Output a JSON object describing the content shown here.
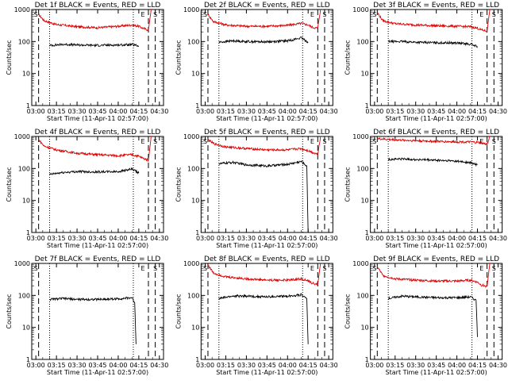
{
  "figure": {
    "start_time_label": "Start Time (11-Apr-11 02:57:00)",
    "ylabel": "Counts/sec",
    "colors": {
      "events": "#000000",
      "lld": "#e00000",
      "axes": "#000000"
    }
  },
  "chart_data": [
    {
      "type": "line",
      "detector": "1f",
      "title": "Det 1f BLACK = Events, RED = LLD",
      "x_ticks": [
        "03:00",
        "03:15",
        "03:30",
        "03:45",
        "04:00",
        "04:15",
        "04:30"
      ],
      "y_ticks": [
        "1",
        "10",
        "100",
        "1000"
      ],
      "ylim": [
        1,
        1000
      ],
      "log_y": true,
      "xlabel": "Start Time (11-Apr-11 02:57:00)",
      "ylabel": "Counts/sec",
      "markers": [
        {
          "label": "S",
          "time": "03:00"
        },
        {
          "label": "E",
          "time": "04:18"
        },
        {
          "label": "S",
          "time": "04:27"
        }
      ],
      "dashed_lines": [
        "03:02",
        "04:22",
        "04:27"
      ],
      "dotted_lines": [
        "03:10",
        "04:11"
      ],
      "series": [
        {
          "name": "LLD",
          "color": "#e00000",
          "x": [
            "03:02",
            "03:06",
            "03:15",
            "03:30",
            "03:45",
            "04:00",
            "04:10",
            "04:15",
            "04:18",
            "04:22",
            "04:24"
          ],
          "values": [
            700,
            450,
            340,
            290,
            270,
            300,
            330,
            300,
            260,
            230,
            1000
          ]
        },
        {
          "name": "Events",
          "color": "#000000",
          "x": [
            "03:10",
            "03:20",
            "03:30",
            "03:45",
            "04:00",
            "04:10",
            "04:15"
          ],
          "values": [
            75,
            82,
            78,
            76,
            78,
            80,
            72
          ]
        }
      ]
    },
    {
      "type": "line",
      "detector": "2f",
      "title": "Det 2f BLACK = Events, RED = LLD",
      "x_ticks": [
        "03:00",
        "03:15",
        "03:30",
        "03:45",
        "04:00",
        "04:15",
        "04:30"
      ],
      "y_ticks": [
        "1",
        "10",
        "100",
        "1000"
      ],
      "ylim": [
        1,
        1000
      ],
      "log_y": true,
      "xlabel": "Start Time (11-Apr-11 02:57:00)",
      "ylabel": "Counts/sec",
      "markers": [
        {
          "label": "S",
          "time": "03:00"
        },
        {
          "label": "E",
          "time": "04:18"
        },
        {
          "label": "S",
          "time": "04:27"
        }
      ],
      "dashed_lines": [
        "03:02",
        "04:22",
        "04:27"
      ],
      "dotted_lines": [
        "03:10",
        "04:11"
      ],
      "series": [
        {
          "name": "LLD",
          "color": "#e00000",
          "x": [
            "03:02",
            "03:06",
            "03:15",
            "03:30",
            "03:45",
            "04:00",
            "04:10",
            "04:15",
            "04:18",
            "04:22",
            "04:24"
          ],
          "values": [
            700,
            420,
            330,
            300,
            300,
            320,
            370,
            330,
            280,
            260,
            1000
          ]
        },
        {
          "name": "Events",
          "color": "#000000",
          "x": [
            "03:10",
            "03:20",
            "03:30",
            "03:45",
            "04:00",
            "04:10",
            "04:15"
          ],
          "values": [
            95,
            105,
            100,
            98,
            105,
            130,
            95
          ]
        }
      ]
    },
    {
      "type": "line",
      "detector": "3f",
      "title": "Det 3f BLACK = Events, RED = LLD",
      "x_ticks": [
        "03:00",
        "03:15",
        "03:30",
        "03:45",
        "04:00",
        "04:15",
        "04:30"
      ],
      "y_ticks": [
        "1",
        "10",
        "100",
        "1000"
      ],
      "ylim": [
        1,
        1000
      ],
      "log_y": true,
      "xlabel": "Start Time (11-Apr-11 02:57:00)",
      "ylabel": "Counts/sec",
      "markers": [
        {
          "label": "S",
          "time": "03:00"
        },
        {
          "label": "E",
          "time": "04:18"
        },
        {
          "label": "S",
          "time": "04:27"
        }
      ],
      "dashed_lines": [
        "03:02",
        "04:22",
        "04:27"
      ],
      "dotted_lines": [
        "03:10",
        "04:11"
      ],
      "series": [
        {
          "name": "LLD",
          "color": "#e00000",
          "x": [
            "03:02",
            "03:06",
            "03:15",
            "03:30",
            "03:45",
            "04:00",
            "04:10",
            "04:15",
            "04:18",
            "04:22",
            "04:24"
          ],
          "values": [
            800,
            450,
            360,
            330,
            310,
            300,
            290,
            260,
            230,
            210,
            1000
          ]
        },
        {
          "name": "Events",
          "color": "#000000",
          "x": [
            "03:10",
            "03:20",
            "03:30",
            "03:45",
            "04:00",
            "04:10",
            "04:15"
          ],
          "values": [
            100,
            100,
            95,
            92,
            90,
            82,
            70
          ]
        }
      ]
    },
    {
      "type": "line",
      "detector": "4f",
      "title": "Det 4f BLACK = Events, RED = LLD",
      "x_ticks": [
        "03:00",
        "03:15",
        "03:30",
        "03:45",
        "04:00",
        "04:15",
        "04:30"
      ],
      "y_ticks": [
        "1",
        "10",
        "100",
        "1000"
      ],
      "ylim": [
        1,
        1000
      ],
      "log_y": true,
      "xlabel": "Start Time (11-Apr-11 02:57:00)",
      "ylabel": "Counts/sec",
      "markers": [
        {
          "label": "E",
          "time": "04:18"
        },
        {
          "label": "S",
          "time": "04:27"
        }
      ],
      "dashed_lines": [
        "03:02",
        "04:22",
        "04:27"
      ],
      "dotted_lines": [
        "03:10",
        "04:11"
      ],
      "series": [
        {
          "name": "LLD",
          "color": "#e00000",
          "x": [
            "03:02",
            "03:06",
            "03:15",
            "03:30",
            "03:45",
            "04:00",
            "04:10",
            "04:15",
            "04:18",
            "04:22",
            "04:24"
          ],
          "values": [
            800,
            500,
            380,
            300,
            270,
            250,
            270,
            240,
            210,
            180,
            1000
          ]
        },
        {
          "name": "Events",
          "color": "#000000",
          "x": [
            "03:10",
            "03:20",
            "03:30",
            "03:45",
            "04:00",
            "04:10",
            "04:15"
          ],
          "values": [
            65,
            75,
            80,
            78,
            80,
            95,
            72
          ]
        }
      ]
    },
    {
      "type": "line",
      "detector": "5f",
      "title": "Det 5f BLACK = Events, RED = LLD",
      "x_ticks": [
        "03:00",
        "03:15",
        "03:30",
        "03:45",
        "04:00",
        "04:15",
        "04:30"
      ],
      "y_ticks": [
        "1",
        "10",
        "100",
        "1000"
      ],
      "ylim": [
        1,
        1000
      ],
      "log_y": true,
      "xlabel": "Start Time (11-Apr-11 02:57:00)",
      "ylabel": "Counts/sec",
      "markers": [
        {
          "label": "S",
          "time": "03:00"
        },
        {
          "label": "E",
          "time": "04:18"
        },
        {
          "label": "S",
          "time": "04:27"
        }
      ],
      "dashed_lines": [
        "03:02",
        "04:22",
        "04:27"
      ],
      "dotted_lines": [
        "03:10",
        "04:11"
      ],
      "series": [
        {
          "name": "LLD",
          "color": "#e00000",
          "x": [
            "03:02",
            "03:06",
            "03:15",
            "03:30",
            "03:45",
            "04:00",
            "04:10",
            "04:15",
            "04:18",
            "04:22",
            "04:24"
          ],
          "values": [
            800,
            600,
            470,
            420,
            380,
            380,
            420,
            360,
            320,
            280,
            1000
          ]
        },
        {
          "name": "Events",
          "color": "#000000",
          "x": [
            "03:10",
            "03:20",
            "03:30",
            "03:45",
            "04:00",
            "04:10",
            "04:14",
            "04:15"
          ],
          "values": [
            140,
            155,
            130,
            120,
            135,
            165,
            120,
            1
          ]
        }
      ]
    },
    {
      "type": "line",
      "detector": "6f",
      "title": "Det 6f BLACK = Events, RED = LLD",
      "x_ticks": [
        "03:00",
        "03:15",
        "03:30",
        "03:45",
        "04:00",
        "04:15",
        "04:30"
      ],
      "y_ticks": [
        "1",
        "10",
        "100",
        "1000"
      ],
      "ylim": [
        1,
        1000
      ],
      "log_y": true,
      "xlabel": "Start Time (11-Apr-11 02:57:00)",
      "ylabel": "Counts/sec",
      "markers": [
        {
          "label": "S",
          "time": "03:00"
        },
        {
          "label": "E",
          "time": "04:18"
        },
        {
          "label": "S",
          "time": "04:27"
        }
      ],
      "dashed_lines": [
        "03:02",
        "04:22",
        "04:27"
      ],
      "dotted_lines": [
        "03:10",
        "04:11"
      ],
      "series": [
        {
          "name": "LLD",
          "color": "#e00000",
          "x": [
            "03:02",
            "03:15",
            "03:30",
            "03:45",
            "04:00",
            "04:10",
            "04:15",
            "04:18",
            "04:22",
            "04:24"
          ],
          "values": [
            850,
            780,
            740,
            700,
            680,
            670,
            650,
            620,
            560,
            1000
          ]
        },
        {
          "name": "Events",
          "color": "#000000",
          "x": [
            "03:10",
            "03:20",
            "03:30",
            "03:45",
            "04:00",
            "04:10",
            "04:15"
          ],
          "values": [
            190,
            200,
            190,
            180,
            170,
            150,
            130
          ]
        }
      ]
    },
    {
      "type": "line",
      "detector": "7f",
      "title": "Det 7f BLACK = Events, RED = LLD",
      "x_ticks": [
        "03:00",
        "03:15",
        "03:30",
        "03:45",
        "04:00",
        "04:15",
        "04:30"
      ],
      "y_ticks": [
        "1",
        "10",
        "100",
        "1000"
      ],
      "ylim": [
        1,
        1000
      ],
      "log_y": true,
      "xlabel": "Start Time (11-Apr-11 02:57:00)",
      "ylabel": "Counts/sec",
      "markers": [
        {
          "label": "S",
          "time": "03:00"
        },
        {
          "label": "E",
          "time": "04:18"
        },
        {
          "label": "S",
          "time": "04:27"
        }
      ],
      "dashed_lines": [
        "03:02",
        "04:22",
        "04:27"
      ],
      "dotted_lines": [
        "03:10",
        "04:11"
      ],
      "series": [
        {
          "name": "Events",
          "color": "#000000",
          "x": [
            "03:10",
            "03:20",
            "03:30",
            "03:45",
            "04:00",
            "04:10",
            "04:12",
            "04:13"
          ],
          "values": [
            75,
            80,
            75,
            75,
            78,
            85,
            60,
            3
          ]
        }
      ]
    },
    {
      "type": "line",
      "detector": "8f",
      "title": "Det 8f BLACK = Events, RED = LLD",
      "x_ticks": [
        "03:00",
        "03:15",
        "03:30",
        "03:45",
        "04:00",
        "04:15",
        "04:30"
      ],
      "y_ticks": [
        "1",
        "10",
        "100",
        "1000"
      ],
      "ylim": [
        1,
        1000
      ],
      "log_y": true,
      "xlabel": "Start Time (11-Apr-11 02:57:00)",
      "ylabel": "Counts/sec",
      "markers": [
        {
          "label": "S",
          "time": "03:00"
        },
        {
          "label": "E",
          "time": "04:18"
        },
        {
          "label": "S",
          "time": "04:27"
        }
      ],
      "dashed_lines": [
        "03:02",
        "04:22",
        "04:27"
      ],
      "dotted_lines": [
        "03:10",
        "04:11"
      ],
      "series": [
        {
          "name": "LLD",
          "color": "#e00000",
          "x": [
            "03:02",
            "03:06",
            "03:15",
            "03:30",
            "03:45",
            "04:00",
            "04:10",
            "04:15",
            "04:18",
            "04:22",
            "04:24"
          ],
          "values": [
            900,
            500,
            380,
            330,
            300,
            300,
            330,
            280,
            240,
            220,
            1000
          ]
        },
        {
          "name": "Events",
          "color": "#000000",
          "x": [
            "03:10",
            "03:20",
            "03:30",
            "03:45",
            "04:00",
            "04:10",
            "04:14",
            "04:15"
          ],
          "values": [
            80,
            95,
            95,
            90,
            95,
            105,
            80,
            3
          ]
        }
      ]
    },
    {
      "type": "line",
      "detector": "9f",
      "title": "Det 9f BLACK = Events, RED = LLD",
      "x_ticks": [
        "03:00",
        "03:15",
        "03:30",
        "03:45",
        "04:00",
        "04:15",
        "04:30"
      ],
      "y_ticks": [
        "1",
        "10",
        "100",
        "1000"
      ],
      "ylim": [
        1,
        1000
      ],
      "log_y": true,
      "xlabel": "Start Time (11-Apr-11 02:57:00)",
      "ylabel": "Counts/sec",
      "markers": [
        {
          "label": "S",
          "time": "03:00"
        },
        {
          "label": "E",
          "time": "04:18"
        },
        {
          "label": "S",
          "time": "04:27"
        }
      ],
      "dashed_lines": [
        "03:02",
        "04:22",
        "04:27"
      ],
      "dotted_lines": [
        "03:10",
        "04:11"
      ],
      "series": [
        {
          "name": "LLD",
          "color": "#e00000",
          "x": [
            "03:02",
            "03:06",
            "03:15",
            "03:30",
            "03:45",
            "04:00",
            "04:10",
            "04:15",
            "04:18",
            "04:22",
            "04:24"
          ],
          "values": [
            800,
            420,
            330,
            300,
            280,
            280,
            300,
            260,
            210,
            190,
            1000
          ]
        },
        {
          "name": "Events",
          "color": "#000000",
          "x": [
            "03:10",
            "03:20",
            "03:30",
            "03:45",
            "04:00",
            "04:10",
            "04:14",
            "04:15"
          ],
          "values": [
            80,
            95,
            90,
            85,
            85,
            90,
            70,
            5
          ]
        }
      ]
    }
  ]
}
